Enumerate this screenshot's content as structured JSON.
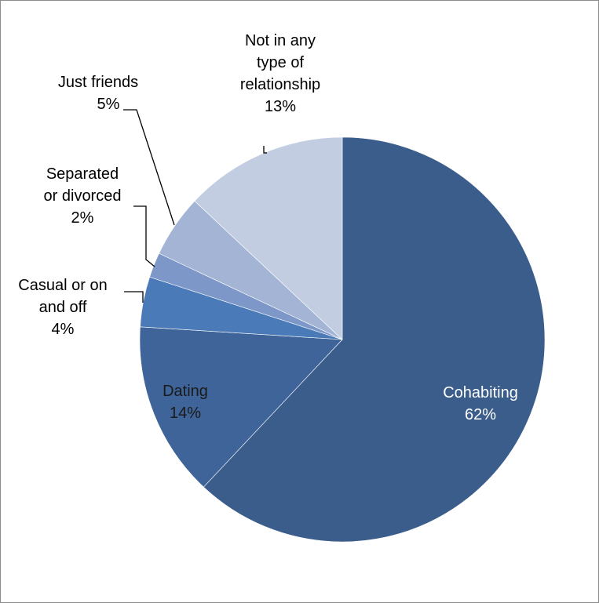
{
  "chart_data": {
    "type": "pie",
    "start_angle_deg": 0,
    "direction": "clockwise",
    "slices": [
      {
        "label": "Cohabiting",
        "value": 62,
        "value_label": "62%",
        "color": "#3A5D8C",
        "label_color": "#FFFFFF",
        "label_inside": true
      },
      {
        "label": "Dating",
        "value": 14,
        "value_label": "14%",
        "color": "#3E6499",
        "label_color": "#1A1A1A",
        "label_inside": true
      },
      {
        "label": "Casual or on and off",
        "value": 4,
        "value_label": "4%",
        "color": "#4A7AB8",
        "label_color": "#000000",
        "label_inside": false
      },
      {
        "label": "Separated or divorced",
        "value": 2,
        "value_label": "2%",
        "color": "#7D98C8",
        "label_color": "#000000",
        "label_inside": false
      },
      {
        "label": "Just friends",
        "value": 5,
        "value_label": "5%",
        "color": "#A3B4D5",
        "label_color": "#000000",
        "label_inside": false
      },
      {
        "label": "Not in any type of relationship",
        "value": 13,
        "value_label": "13%",
        "color": "#C2CDE2",
        "label_color": "#000000",
        "label_inside": false
      }
    ],
    "legend": "none"
  },
  "labels": {
    "cohabiting": [
      "Cohabiting",
      "62%"
    ],
    "dating": [
      "Dating",
      "14%"
    ],
    "casual": [
      "Casual or on",
      "and off",
      "4%"
    ],
    "separated": [
      "Separated",
      "or divorced",
      "2%"
    ],
    "friends": [
      "Just friends",
      "5%"
    ],
    "none": [
      "Not in any",
      "type of",
      "relationship",
      "13%"
    ]
  },
  "style": {
    "border_color": "#8C8C8C",
    "leader_color": "#000000"
  }
}
